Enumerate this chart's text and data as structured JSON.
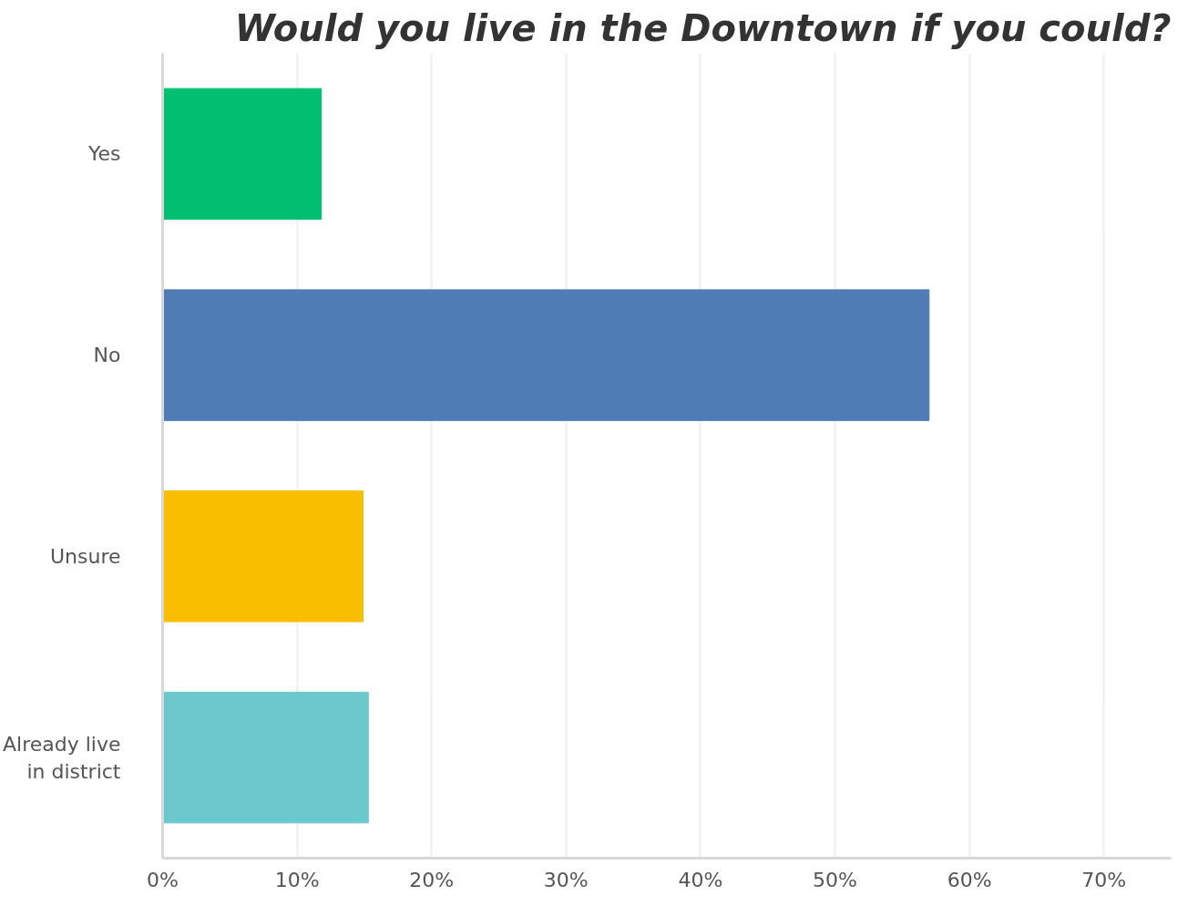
{
  "chart_data": {
    "type": "bar",
    "orientation": "horizontal",
    "title": "Would you live in the Downtown if you could?",
    "categories": [
      "Yes",
      "No",
      "Unsure",
      "Already live in district"
    ],
    "values": [
      11.8,
      57.0,
      14.9,
      15.3
    ],
    "colors": [
      "#00bf6f",
      "#507cb6",
      "#f9be00",
      "#6bc8cd"
    ],
    "xlim": [
      0,
      75
    ],
    "xticks": [
      {
        "value": 0,
        "label": "0%"
      },
      {
        "value": 10,
        "label": "10%"
      },
      {
        "value": 20,
        "label": "20%"
      },
      {
        "value": 30,
        "label": "30%"
      },
      {
        "value": 40,
        "label": "40%"
      },
      {
        "value": 50,
        "label": "50%"
      },
      {
        "value": 60,
        "label": "60%"
      },
      {
        "value": 70,
        "label": "70%"
      }
    ],
    "grid": "x"
  }
}
